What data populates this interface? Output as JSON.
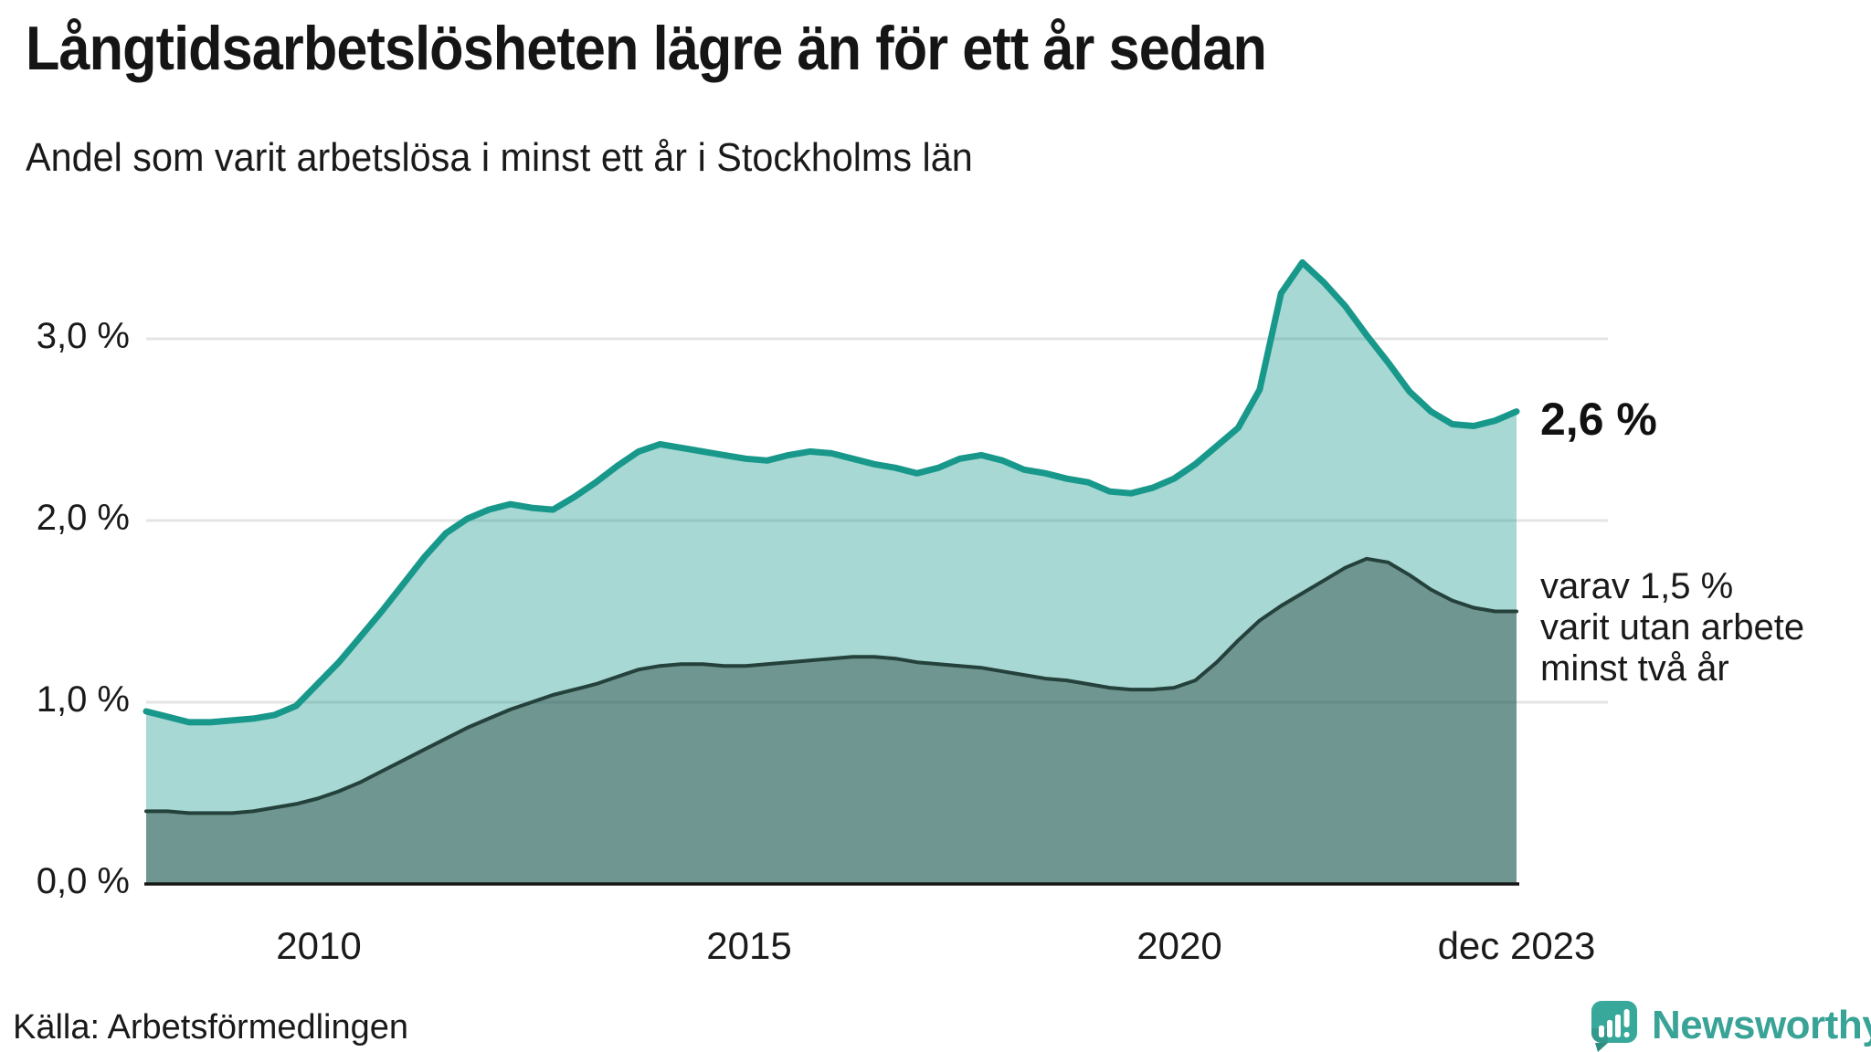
{
  "chart_data": {
    "type": "area",
    "title": "Långtidsarbetslösheten lägre än för ett år sedan",
    "subtitle": "Andel som varit arbetslösa i minst ett år i Stockholms län",
    "xlabel": "",
    "ylabel": "",
    "x_start": "jan 2008",
    "x_end": "dec 2023",
    "points_per_year": 4,
    "x_tick_labels": [
      "2010",
      "2015",
      "2020",
      "dec 2023"
    ],
    "y_tick_labels": [
      "0,0 %",
      "1,0 %",
      "2,0 %",
      "3,0 %"
    ],
    "y_grid_values": [
      1,
      2,
      3
    ],
    "ylim": [
      0,
      3.8
    ],
    "grid": "horizontal",
    "legend_position": "right-end-labels",
    "series": [
      {
        "name": "Andel som varit arbetslösa minst ett år",
        "end_value": "2,6 %",
        "line_color": "#17988b",
        "fill_color": "#17988b",
        "fill_opacity": 0.38,
        "values": [
          0.95,
          0.92,
          0.89,
          0.89,
          0.9,
          0.91,
          0.93,
          0.98,
          1.1,
          1.22,
          1.36,
          1.5,
          1.65,
          1.8,
          1.93,
          2.01,
          2.06,
          2.09,
          2.07,
          2.06,
          2.13,
          2.21,
          2.3,
          2.38,
          2.42,
          2.4,
          2.38,
          2.36,
          2.34,
          2.33,
          2.36,
          2.38,
          2.37,
          2.34,
          2.31,
          2.29,
          2.26,
          2.29,
          2.34,
          2.36,
          2.33,
          2.28,
          2.26,
          2.23,
          2.21,
          2.16,
          2.15,
          2.18,
          2.23,
          2.31,
          2.41,
          2.51,
          2.72,
          3.25,
          3.42,
          3.31,
          3.18,
          3.02,
          2.87,
          2.71,
          2.6,
          2.53,
          2.52,
          2.55,
          2.6
        ]
      },
      {
        "name": "varav utan arbete minst två år",
        "end_value": "1,5 %",
        "line_color": "#25413b",
        "fill_color": "#223c36",
        "fill_opacity": 0.42,
        "values": [
          0.4,
          0.4,
          0.39,
          0.39,
          0.39,
          0.4,
          0.42,
          0.44,
          0.47,
          0.51,
          0.56,
          0.62,
          0.68,
          0.74,
          0.8,
          0.86,
          0.91,
          0.96,
          1.0,
          1.04,
          1.07,
          1.1,
          1.14,
          1.18,
          1.2,
          1.21,
          1.21,
          1.2,
          1.2,
          1.21,
          1.22,
          1.23,
          1.24,
          1.25,
          1.25,
          1.24,
          1.22,
          1.21,
          1.2,
          1.19,
          1.17,
          1.15,
          1.13,
          1.12,
          1.1,
          1.08,
          1.07,
          1.07,
          1.08,
          1.12,
          1.22,
          1.34,
          1.45,
          1.53,
          1.6,
          1.67,
          1.74,
          1.79,
          1.77,
          1.7,
          1.62,
          1.56,
          1.52,
          1.5,
          1.5
        ]
      }
    ],
    "annotations": {
      "total_end": "2,6 %",
      "two_year_line1": "varav 1,5 %",
      "two_year_line2": "varit utan arbete",
      "two_year_line3": "minst två år"
    }
  },
  "colors": {
    "gridline": "#e4e4e6",
    "axis": "#151515",
    "text": "#1a1a1a",
    "logo": "#38a396",
    "logo_dark": "#2e8d81"
  },
  "footer": {
    "source": "Källa: Arbetsförmedlingen",
    "logo_text": "Newsworthy"
  }
}
